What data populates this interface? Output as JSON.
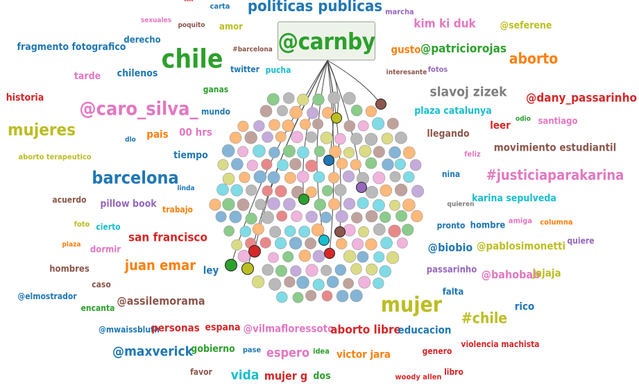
{
  "focus": {
    "label": "@carnby"
  },
  "palette": [
    "#1f77b4",
    "#ff7f0e",
    "#2ca02c",
    "#d62728",
    "#9467bd",
    "#8c564b",
    "#e377c2",
    "#7f7f7f",
    "#bcbd22",
    "#17becf"
  ],
  "words": [
    {
      "text": "----",
      "color": "#d62728"
    },
    {
      "text": "carta",
      "color": "#1f77b4"
    },
    {
      "text": "politicas publicas",
      "color": "#1f77b4"
    },
    {
      "text": "marcha",
      "color": "#9467bd"
    },
    {
      "text": "sexuales",
      "color": "#e377c2"
    },
    {
      "text": "poquito",
      "color": "#8c564b"
    },
    {
      "text": "amor",
      "color": "#bcbd22"
    },
    {
      "text": "kim ki duk",
      "color": "#e377c2"
    },
    {
      "text": "@seferene",
      "color": "#bcbd22"
    },
    {
      "text": "fragmento fotografico",
      "color": "#1f77b4"
    },
    {
      "text": "derecho",
      "color": "#1f77b4"
    },
    {
      "text": "#barcelona",
      "color": "#8c564b"
    },
    {
      "text": "gusto",
      "color": "#ff7f0e"
    },
    {
      "text": "@patriciorojas",
      "color": "#2ca02c"
    },
    {
      "text": "chile",
      "color": "#2ca02c"
    },
    {
      "text": "aborto",
      "color": "#ff7f0e"
    },
    {
      "text": "twitter",
      "color": "#1f77b4"
    },
    {
      "text": "pucha",
      "color": "#17becf"
    },
    {
      "text": "interesante",
      "color": "#8c564b"
    },
    {
      "text": "fotos",
      "color": "#9467bd"
    },
    {
      "text": "tarde",
      "color": "#e377c2"
    },
    {
      "text": "chilenos",
      "color": "#1f77b4"
    },
    {
      "text": "slavoj zizek",
      "color": "#7f7f7f"
    },
    {
      "text": "historia",
      "color": "#d62728"
    },
    {
      "text": "ganas",
      "color": "#2ca02c"
    },
    {
      "text": "@dany_passarinho",
      "color": "#d62728"
    },
    {
      "text": "@caro_silva_",
      "color": "#e377c2"
    },
    {
      "text": "mundo",
      "color": "#1f77b4"
    },
    {
      "text": "plaza catalunya",
      "color": "#17becf"
    },
    {
      "text": "odio",
      "color": "#2ca02c"
    },
    {
      "text": "leer",
      "color": "#d62728"
    },
    {
      "text": "santiago",
      "color": "#e377c2"
    },
    {
      "text": "mujeres",
      "color": "#bcbd22"
    },
    {
      "text": "pais",
      "color": "#ff7f0e"
    },
    {
      "text": "00 hrs",
      "color": "#e377c2"
    },
    {
      "text": "llegando",
      "color": "#8c564b"
    },
    {
      "text": "dlo",
      "color": "#1f77b4"
    },
    {
      "text": "movimiento estudiantil",
      "color": "#8c564b"
    },
    {
      "text": "aborto terapeutico",
      "color": "#bcbd22"
    },
    {
      "text": "tiempo",
      "color": "#1f77b4"
    },
    {
      "text": "feliz",
      "color": "#e377c2"
    },
    {
      "text": "barcelona",
      "color": "#1f77b4"
    },
    {
      "text": "nina",
      "color": "#1f77b4"
    },
    {
      "text": "#justiciaparakarina",
      "color": "#e377c2"
    },
    {
      "text": "linda",
      "color": "#1f77b4"
    },
    {
      "text": "acuerdo",
      "color": "#8c564b"
    },
    {
      "text": "karina sepulveda",
      "color": "#17becf"
    },
    {
      "text": "pillow book",
      "color": "#9467bd"
    },
    {
      "text": "trabajo",
      "color": "#ff7f0e"
    },
    {
      "text": "quieren",
      "color": "#7f7f7f"
    },
    {
      "text": "foto",
      "color": "#bcbd22"
    },
    {
      "text": "cierto",
      "color": "#17becf"
    },
    {
      "text": "amiga",
      "color": "#e377c2"
    },
    {
      "text": "columna",
      "color": "#ff7f0e"
    },
    {
      "text": "pronto",
      "color": "#1f77b4"
    },
    {
      "text": "hombre",
      "color": "#1f77b4"
    },
    {
      "text": "quiere",
      "color": "#9467bd"
    },
    {
      "text": "san francisco",
      "color": "#d62728"
    },
    {
      "text": "plaza",
      "color": "#ff7f0e"
    },
    {
      "text": "dormir",
      "color": "#e377c2"
    },
    {
      "text": "@biobio",
      "color": "#1f77b4"
    },
    {
      "text": "@pablosimonetti",
      "color": "#bcbd22"
    },
    {
      "text": "juan emar",
      "color": "#ff7f0e"
    },
    {
      "text": "hombres",
      "color": "#8c564b"
    },
    {
      "text": "ley",
      "color": "#1f77b4"
    },
    {
      "text": "passarinho",
      "color": "#9467bd"
    },
    {
      "text": "@bahobab",
      "color": "#e377c2"
    },
    {
      "text": "jajaja",
      "color": "#bcbd22"
    },
    {
      "text": "caso",
      "color": "#8c564b"
    },
    {
      "text": "falta",
      "color": "#1f77b4"
    },
    {
      "text": "@elmostrador",
      "color": "#1f77b4"
    },
    {
      "text": "@assilemorama",
      "color": "#8c564b"
    },
    {
      "text": "mujer",
      "color": "#bcbd22"
    },
    {
      "text": "rico",
      "color": "#1f77b4"
    },
    {
      "text": "encanta",
      "color": "#2ca02c"
    },
    {
      "text": "#chile",
      "color": "#bcbd22"
    },
    {
      "text": "@mwaissbluth",
      "color": "#1f77b4"
    },
    {
      "text": "personas",
      "color": "#d62728"
    },
    {
      "text": "espana",
      "color": "#d62728"
    },
    {
      "text": "@vilmafloressoto",
      "color": "#e377c2"
    },
    {
      "text": "aborto libre",
      "color": "#d62728"
    },
    {
      "text": "educacion",
      "color": "#1f77b4"
    },
    {
      "text": "@maxverick",
      "color": "#1f77b4"
    },
    {
      "text": "gobierno",
      "color": "#2ca02c"
    },
    {
      "text": "pase",
      "color": "#1f77b4"
    },
    {
      "text": "espero",
      "color": "#e377c2"
    },
    {
      "text": "idea",
      "color": "#2ca02c"
    },
    {
      "text": "victor jara",
      "color": "#ff7f0e"
    },
    {
      "text": "genero",
      "color": "#d62728"
    },
    {
      "text": "violencia machista",
      "color": "#d62728"
    },
    {
      "text": "favor",
      "color": "#8c564b"
    },
    {
      "text": "vida",
      "color": "#17becf"
    },
    {
      "text": "mujer g",
      "color": "#d62728"
    },
    {
      "text": "dos",
      "color": "#2ca02c"
    },
    {
      "text": "woody allen",
      "color": "#d62728"
    },
    {
      "text": "libro",
      "color": "#d62728"
    }
  ]
}
